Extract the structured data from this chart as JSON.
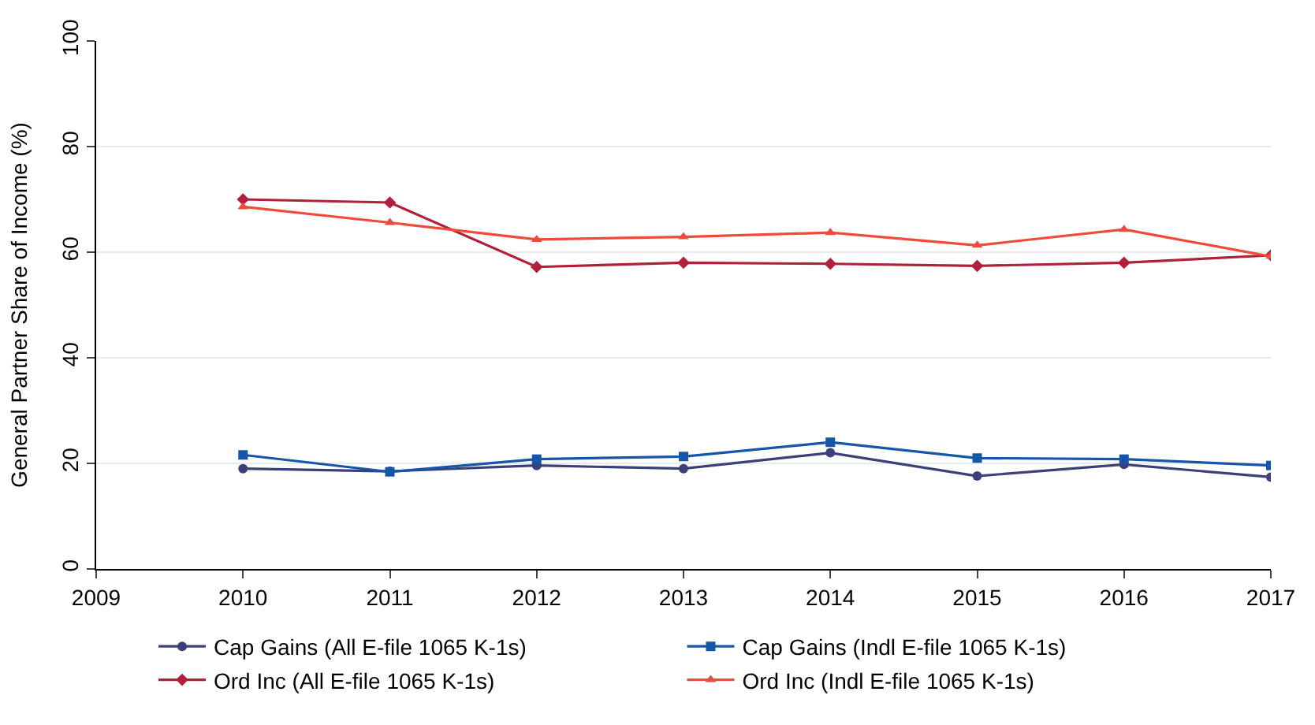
{
  "chart_data": {
    "type": "line",
    "ylabel": "General Partner Share of Income (%)",
    "x": [
      2010,
      2011,
      2012,
      2013,
      2014,
      2015,
      2016,
      2017
    ],
    "xlim": [
      2009,
      2017
    ],
    "xticks": [
      2009,
      2010,
      2011,
      2012,
      2013,
      2014,
      2015,
      2016,
      2017
    ],
    "ylim": [
      0,
      100
    ],
    "yticks": [
      0,
      20,
      40,
      60,
      80,
      100
    ],
    "grid": "y",
    "legend": "bottom",
    "line_style": "solid",
    "series": [
      {
        "name": "Cap Gains (All E-file 1065 K-1s)",
        "color": "#3b3f7a",
        "marker": "circle",
        "values": [
          19.0,
          18.5,
          19.6,
          19.0,
          22.0,
          17.6,
          19.8,
          17.4
        ]
      },
      {
        "name": "Cap Gains (Indl E-file 1065 K-1s)",
        "color": "#1556a8",
        "marker": "square",
        "values": [
          21.6,
          18.4,
          20.8,
          21.3,
          24.0,
          21.0,
          20.8,
          19.6
        ]
      },
      {
        "name": "Ord Inc (All E-file 1065 K-1s)",
        "color": "#b0203a",
        "marker": "diamond",
        "values": [
          70.0,
          69.4,
          57.2,
          58.0,
          57.8,
          57.4,
          58.0,
          59.4
        ]
      },
      {
        "name": "Ord Inc (Indl E-file 1065 K-1s)",
        "color": "#f04a3a",
        "marker": "triangle",
        "values": [
          68.6,
          65.6,
          62.4,
          62.9,
          63.7,
          61.3,
          64.3,
          59.2
        ]
      }
    ]
  }
}
